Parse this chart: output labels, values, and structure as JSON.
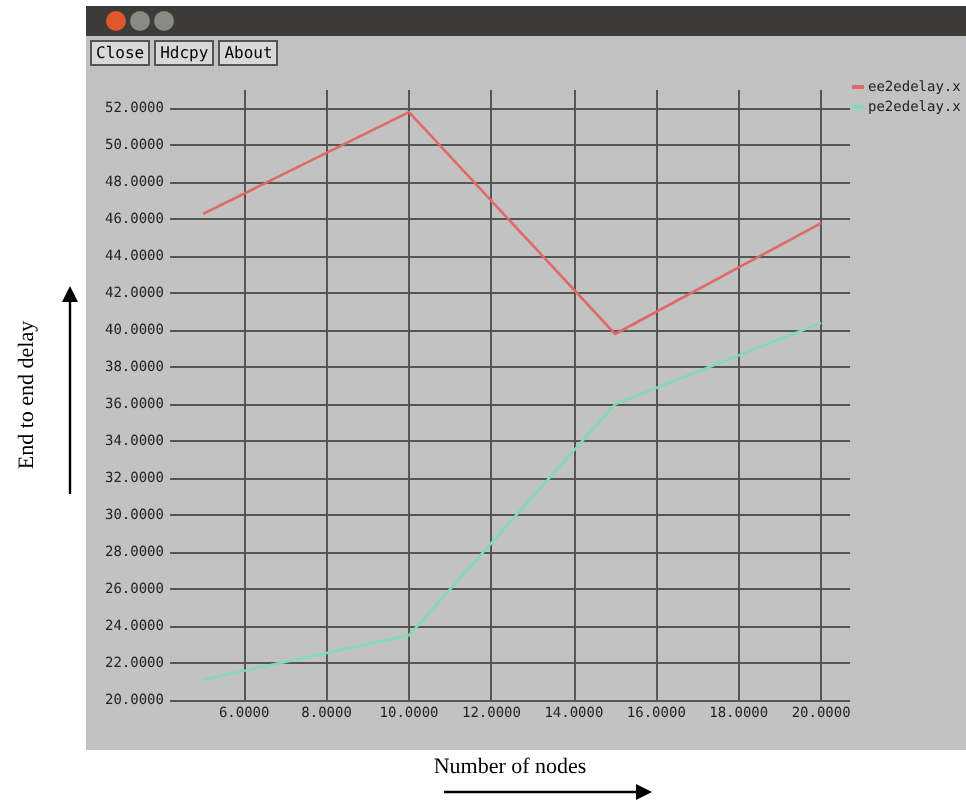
{
  "chart_data": {
    "type": "line",
    "annotations": [
      "Close",
      "Hdcpy",
      "About"
    ],
    "xlabel": "Number of nodes",
    "ylabel": "End to end delay",
    "x": [
      5,
      10,
      15,
      20
    ],
    "series": [
      {
        "name": "ee2edelay.x",
        "color": "#e06868",
        "values": [
          46.3,
          51.8,
          39.8,
          45.8
        ]
      },
      {
        "name": "pe2edelay.x",
        "color": "#80dcb4",
        "values": [
          21.1,
          23.5,
          36.0,
          40.4
        ]
      }
    ],
    "xlim": [
      4.2,
      20.7
    ],
    "xticks": [
      {
        "value": 6,
        "label": "6.0000"
      },
      {
        "value": 8,
        "label": "8.0000"
      },
      {
        "value": 10,
        "label": "10.0000"
      },
      {
        "value": 12,
        "label": "12.0000"
      },
      {
        "value": 14,
        "label": "14.0000"
      },
      {
        "value": 16,
        "label": "16.0000"
      },
      {
        "value": 18,
        "label": "18.0000"
      },
      {
        "value": 20,
        "label": "20.0000"
      }
    ],
    "ylim": [
      20,
      53
    ],
    "yticks": [
      {
        "value": 20,
        "label": "20.0000"
      },
      {
        "value": 22,
        "label": "22.0000"
      },
      {
        "value": 24,
        "label": "24.0000"
      },
      {
        "value": 26,
        "label": "26.0000"
      },
      {
        "value": 28,
        "label": "28.0000"
      },
      {
        "value": 30,
        "label": "30.0000"
      },
      {
        "value": 32,
        "label": "32.0000"
      },
      {
        "value": 34,
        "label": "34.0000"
      },
      {
        "value": 36,
        "label": "36.0000"
      },
      {
        "value": 38,
        "label": "38.0000"
      },
      {
        "value": 40,
        "label": "40.0000"
      },
      {
        "value": 42,
        "label": "42.0000"
      },
      {
        "value": 44,
        "label": "44.0000"
      },
      {
        "value": 46,
        "label": "46.0000"
      },
      {
        "value": 48,
        "label": "48.0000"
      },
      {
        "value": 50,
        "label": "50.0000"
      },
      {
        "value": 52,
        "label": "52.0000"
      }
    ],
    "grid": true,
    "legend": "top right",
    "marker": "none",
    "line_style": "solid"
  }
}
